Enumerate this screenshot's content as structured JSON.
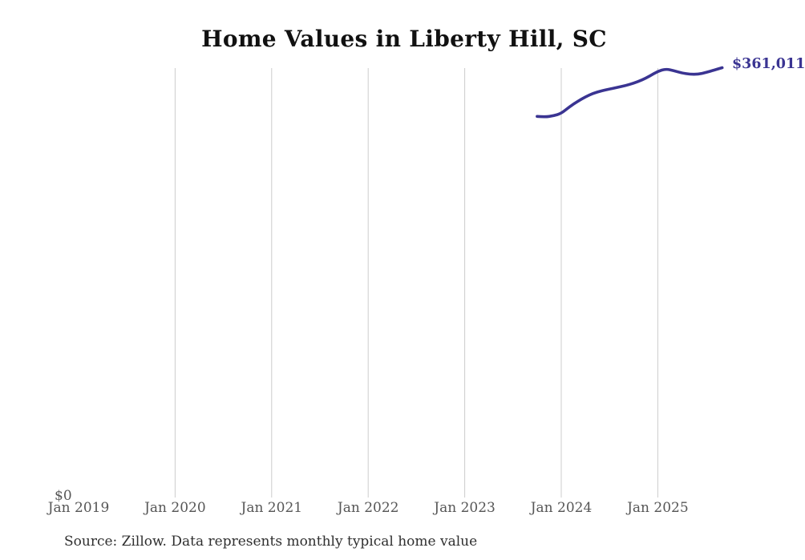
{
  "source_note": "Source: Zillow. Data represents monthly typical home value",
  "chart_data": {
    "type": "line",
    "title": "Home Values in Liberty Hill, SC",
    "legend": "none",
    "grid": "vertical-only",
    "gridline_color": "#cccccc",
    "axis_label_color": "#565656",
    "background_color": "#ffffff",
    "x_ticks": [
      {
        "label": "Jan 2019",
        "year": 2019,
        "has_gridline": false
      },
      {
        "label": "Jan 2020",
        "year": 2020,
        "has_gridline": true
      },
      {
        "label": "Jan 2021",
        "year": 2021,
        "has_gridline": true
      },
      {
        "label": "Jan 2022",
        "year": 2022,
        "has_gridline": true
      },
      {
        "label": "Jan 2023",
        "year": 2023,
        "has_gridline": true
      },
      {
        "label": "Jan 2024",
        "year": 2024,
        "has_gridline": true
      },
      {
        "label": "Jan 2025",
        "year": 2025,
        "has_gridline": true
      }
    ],
    "y_axis": {
      "zero_label": "$0",
      "min": 0
    },
    "end_label": "$361,011",
    "series": [
      {
        "name": "Typical home value",
        "color": "#3a3492",
        "points": [
          {
            "date": "2023-10",
            "value": 320000
          },
          {
            "date": "2023-11",
            "value": 319500
          },
          {
            "date": "2023-12",
            "value": 320500
          },
          {
            "date": "2024-01",
            "value": 322500
          },
          {
            "date": "2024-02",
            "value": 328000
          },
          {
            "date": "2024-03",
            "value": 332500
          },
          {
            "date": "2024-04",
            "value": 336500
          },
          {
            "date": "2024-05",
            "value": 339500
          },
          {
            "date": "2024-06",
            "value": 341500
          },
          {
            "date": "2024-07",
            "value": 343000
          },
          {
            "date": "2024-08",
            "value": 344500
          },
          {
            "date": "2024-09",
            "value": 346000
          },
          {
            "date": "2024-10",
            "value": 348000
          },
          {
            "date": "2024-11",
            "value": 350500
          },
          {
            "date": "2024-12",
            "value": 354000
          },
          {
            "date": "2025-01",
            "value": 358000
          },
          {
            "date": "2025-02",
            "value": 360000
          },
          {
            "date": "2025-03",
            "value": 358500
          },
          {
            "date": "2025-04",
            "value": 356500
          },
          {
            "date": "2025-05",
            "value": 355500
          },
          {
            "date": "2025-06",
            "value": 355500
          },
          {
            "date": "2025-07",
            "value": 357000
          },
          {
            "date": "2025-08",
            "value": 359000
          },
          {
            "date": "2025-09",
            "value": 361011
          }
        ]
      }
    ]
  }
}
